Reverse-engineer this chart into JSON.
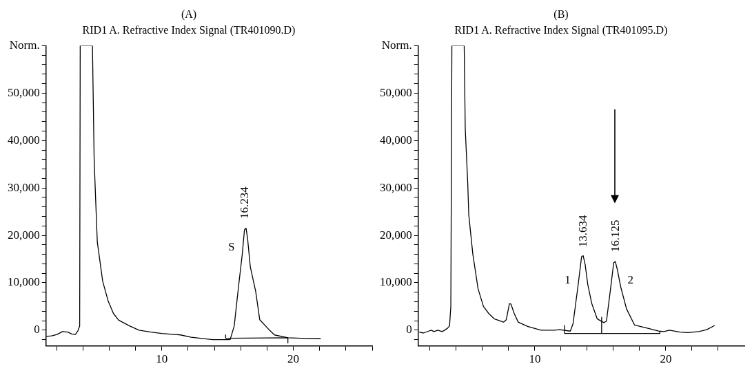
{
  "chart_data": [
    {
      "type": "line",
      "title": "(A)",
      "subtitle": "RID1 A. Refractive Index Signal (TR401090.D)",
      "xlim": [
        1.2,
        26
      ],
      "ylim": [
        -3300,
        60000
      ],
      "xticks": [
        {
          "value": 2,
          "label": null
        },
        {
          "value": 4,
          "label": null
        },
        {
          "value": 6,
          "label": null
        },
        {
          "value": 8,
          "label": null
        },
        {
          "value": 10,
          "label": "10"
        },
        {
          "value": 12,
          "label": null
        },
        {
          "value": 14,
          "label": null
        },
        {
          "value": 16,
          "label": null
        },
        {
          "value": 18,
          "label": null
        },
        {
          "value": 20,
          "label": "20"
        },
        {
          "value": 22,
          "label": null
        },
        {
          "value": 24,
          "label": null
        },
        {
          "value": 26,
          "label": null
        }
      ],
      "yticks": [
        {
          "value": -2000,
          "label": null
        },
        0,
        {
          "value": 2000,
          "label": null
        },
        {
          "value": 4000,
          "label": null
        },
        {
          "value": 6000,
          "label": null
        },
        {
          "value": 8000,
          "label": null
        },
        {
          "value": 10000,
          "label": "10,000"
        },
        {
          "value": 12000,
          "label": null
        },
        {
          "value": 14000,
          "label": null
        },
        {
          "value": 16000,
          "label": null
        },
        {
          "value": 18000,
          "label": null
        },
        {
          "value": 20000,
          "label": "20,000"
        },
        {
          "value": 22000,
          "label": null
        },
        {
          "value": 24000,
          "label": null
        },
        {
          "value": 26000,
          "label": null
        },
        {
          "value": 28000,
          "label": null
        },
        {
          "value": 30000,
          "label": "30,000"
        },
        {
          "value": 32000,
          "label": null
        },
        {
          "value": 34000,
          "label": null
        },
        {
          "value": 36000,
          "label": null
        },
        {
          "value": 38000,
          "label": null
        },
        {
          "value": 40000,
          "label": "40,000"
        },
        {
          "value": 42000,
          "label": null
        },
        {
          "value": 44000,
          "label": null
        },
        {
          "value": 46000,
          "label": null
        },
        {
          "value": 48000,
          "label": null
        },
        {
          "value": 50000,
          "label": "50,000"
        },
        {
          "value": 52000,
          "label": null
        },
        {
          "value": 54000,
          "label": null
        },
        {
          "value": 56000,
          "label": null
        },
        {
          "value": 58000,
          "label": null
        },
        {
          "value": 60000,
          "label": "Norm."
        }
      ],
      "grid": false,
      "legend": false,
      "marker": "none",
      "line_style": "solid",
      "series": [
        {
          "color": "#000000",
          "x": [
            1.22,
            1.63,
            2.04,
            2.45,
            2.86,
            3.16,
            3.43,
            3.63,
            3.76,
            3.8,
            4.73,
            4.86,
            4.94,
            5.1,
            5.51,
            5.92,
            6.33,
            6.73,
            7.55,
            8.27,
            9.18,
            10,
            11.43,
            12.24,
            13.88,
            15.2,
            15.51,
            15.82,
            16.12,
            16.29,
            16.41,
            16.53,
            16.73,
            17.14,
            17.45,
            18.16,
            18.57,
            19.59,
            20.61,
            22.08
          ],
          "values": [
            -1300,
            -1200,
            -900,
            -300,
            -400,
            -800,
            -900,
            -100,
            900,
            60000,
            60000,
            36000,
            30000,
            18600,
            10300,
            6200,
            3500,
            2100,
            900,
            0,
            -400,
            -700,
            -1000,
            -1500,
            -2000,
            -2000,
            900,
            8800,
            16000,
            21200,
            21500,
            19200,
            13400,
            8200,
            2200,
            100,
            -1000,
            -1600,
            -1700,
            -1800
          ]
        },
        {
          "color": "#000000",
          "x": [
            14.86,
            14.86,
            19.59,
            19.59
          ],
          "values": [
            -1000,
            -1700,
            -1600,
            -2700
          ]
        }
      ],
      "annotations": [
        "16.234",
        "S"
      ]
    },
    {
      "type": "line",
      "title": "(B)",
      "subtitle": "RID1 A. Refractive Index Signal (TR401095.D)",
      "xlim": [
        1.1,
        26
      ],
      "ylim": [
        -3300,
        60000
      ],
      "xticks": [
        {
          "value": 2,
          "label": null
        },
        {
          "value": 4,
          "label": null
        },
        {
          "value": 6,
          "label": null
        },
        {
          "value": 8,
          "label": null
        },
        {
          "value": 10,
          "label": "10"
        },
        {
          "value": 12,
          "label": null
        },
        {
          "value": 14,
          "label": null
        },
        {
          "value": 16,
          "label": null
        },
        {
          "value": 18,
          "label": null
        },
        {
          "value": 20,
          "label": "20"
        },
        {
          "value": 22,
          "label": null
        },
        {
          "value": 24,
          "label": null
        }
      ],
      "yticks": [
        {
          "value": -2000,
          "label": null
        },
        0,
        {
          "value": 2000,
          "label": null
        },
        {
          "value": 4000,
          "label": null
        },
        {
          "value": 6000,
          "label": null
        },
        {
          "value": 8000,
          "label": null
        },
        {
          "value": 10000,
          "label": "10,000"
        },
        {
          "value": 12000,
          "label": null
        },
        {
          "value": 14000,
          "label": null
        },
        {
          "value": 16000,
          "label": null
        },
        {
          "value": 18000,
          "label": null
        },
        {
          "value": 20000,
          "label": "20,000"
        },
        {
          "value": 22000,
          "label": null
        },
        {
          "value": 24000,
          "label": null
        },
        {
          "value": 26000,
          "label": null
        },
        {
          "value": 28000,
          "label": null
        },
        {
          "value": 30000,
          "label": "30,000"
        },
        {
          "value": 32000,
          "label": null
        },
        {
          "value": 34000,
          "label": null
        },
        {
          "value": 36000,
          "label": null
        },
        {
          "value": 38000,
          "label": null
        },
        {
          "value": 40000,
          "label": "40,000"
        },
        {
          "value": 42000,
          "label": null
        },
        {
          "value": 44000,
          "label": null
        },
        {
          "value": 46000,
          "label": null
        },
        {
          "value": 48000,
          "label": null
        },
        {
          "value": 50000,
          "label": "50,000"
        },
        {
          "value": 52000,
          "label": null
        },
        {
          "value": 54000,
          "label": null
        },
        {
          "value": 56000,
          "label": null
        },
        {
          "value": 58000,
          "label": null
        },
        {
          "value": 60000,
          "label": "Norm."
        }
      ],
      "grid": false,
      "legend": false,
      "marker": "none",
      "line_style": "solid",
      "series": [
        {
          "color": "#000000",
          "x": [
            1.18,
            1.49,
            1.9,
            2.1,
            2.3,
            2.6,
            2.92,
            3.12,
            3.33,
            3.49,
            3.59,
            3.67,
            4.61,
            4.69,
            4.88,
            4.96,
            5.27,
            5.67,
            6.08,
            6.49,
            6.9,
            7.61,
            7.82,
            8.06,
            8.18,
            8.43,
            8.73,
            9.45,
            10.47,
            11.49,
            11.9,
            12.71,
            12.92,
            13.29,
            13.57,
            13.69,
            13.84,
            14.04,
            14.35,
            14.76,
            15.27,
            15.47,
            15.78,
            16.02,
            16.14,
            16.29,
            16.55,
            17,
            17.61,
            18.63,
            19.45,
            19.86,
            20.27,
            21.08,
            21.69,
            22.51,
            23.12,
            23.73
          ],
          "values": [
            -400,
            -600,
            -200,
            0,
            -300,
            0,
            -300,
            0,
            400,
            900,
            5000,
            60000,
            60000,
            42500,
            31000,
            24300,
            16000,
            8700,
            5000,
            3500,
            2400,
            1700,
            2200,
            5600,
            5500,
            3500,
            1700,
            800,
            0,
            0,
            100,
            -200,
            1400,
            9200,
            15500,
            15700,
            13900,
            9700,
            5600,
            2400,
            1600,
            1900,
            8700,
            14200,
            14500,
            12900,
            9200,
            4500,
            1100,
            400,
            -200,
            -300,
            0,
            -400,
            -500,
            -300,
            100,
            1000
          ]
        },
        {
          "color": "#000000",
          "x": [
            12.27,
            12.27,
            15.1,
            15.1,
            15.1,
            19.55,
            19.55
          ],
          "values": [
            1000,
            -700,
            -700,
            2700,
            -700,
            -700,
            -300
          ]
        }
      ],
      "annotations": [
        "13.634",
        "16.125",
        "1",
        "2"
      ]
    }
  ]
}
